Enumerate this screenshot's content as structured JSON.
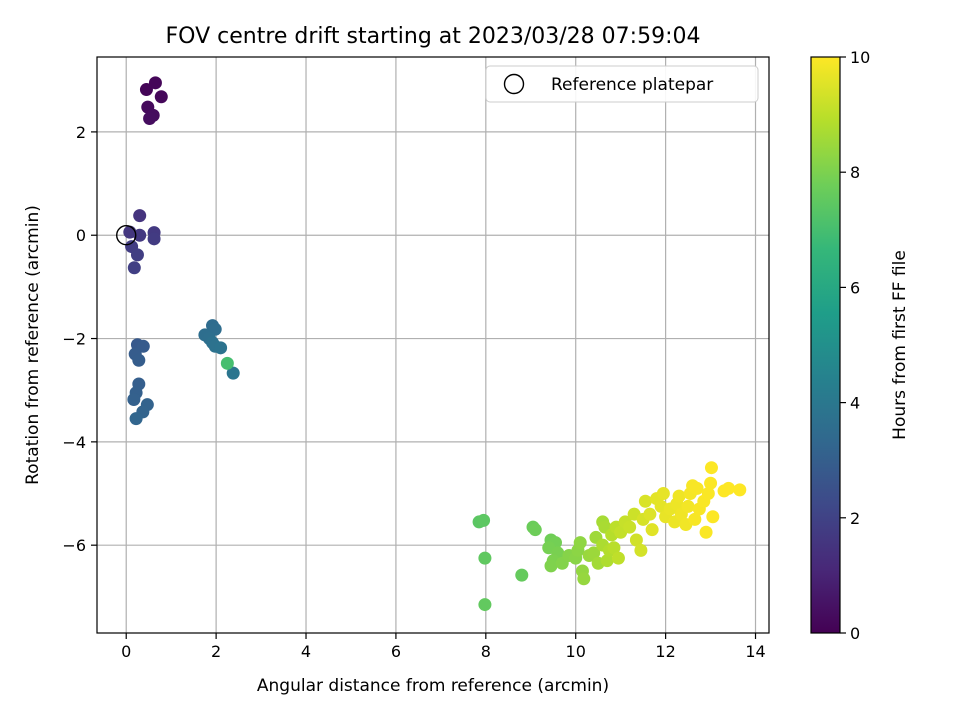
{
  "chart_data": {
    "type": "scatter",
    "title": "FOV centre drift starting at 2023/03/28 07:59:04",
    "xlabel": "Angular distance from reference (arcmin)",
    "ylabel": "Rotation from reference (arcmin)",
    "xlim": [
      -0.65,
      14.3
    ],
    "ylim": [
      -7.7,
      3.45
    ],
    "xticks": [
      0,
      2,
      4,
      6,
      8,
      10,
      12,
      14
    ],
    "yticks": [
      -6,
      -4,
      -2,
      0,
      2
    ],
    "grid": true,
    "legend": {
      "placement": "top-right",
      "entries": [
        "Reference platepar"
      ]
    },
    "reference_point": {
      "x": 0,
      "y": 0
    },
    "colorbar": {
      "label": "Hours from first FF file",
      "range": [
        0,
        10
      ],
      "ticks": [
        0,
        2,
        4,
        6,
        8,
        10
      ],
      "colormap": "viridis"
    },
    "colormap_stops": [
      "#440154",
      "#482878",
      "#3e4989",
      "#31688e",
      "#26828e",
      "#1f9e89",
      "#35b779",
      "#6ece58",
      "#b5de2b",
      "#fde725"
    ],
    "points": [
      {
        "x": 0.45,
        "y": 2.82,
        "c": 0.1
      },
      {
        "x": 0.65,
        "y": 2.95,
        "c": 0.15
      },
      {
        "x": 0.78,
        "y": 2.68,
        "c": 0.2
      },
      {
        "x": 0.48,
        "y": 2.48,
        "c": 0.25
      },
      {
        "x": 0.6,
        "y": 2.32,
        "c": 0.3
      },
      {
        "x": 0.52,
        "y": 2.26,
        "c": 0.35
      },
      {
        "x": 0.3,
        "y": 0.38,
        "c": 1.5
      },
      {
        "x": 0.08,
        "y": 0.06,
        "c": 1.6
      },
      {
        "x": 0.3,
        "y": 0.0,
        "c": 1.65
      },
      {
        "x": 0.62,
        "y": 0.05,
        "c": 1.7
      },
      {
        "x": 0.62,
        "y": -0.07,
        "c": 1.75
      },
      {
        "x": 0.12,
        "y": -0.22,
        "c": 1.8
      },
      {
        "x": 0.25,
        "y": -0.38,
        "c": 1.85
      },
      {
        "x": 0.18,
        "y": -0.63,
        "c": 1.9
      },
      {
        "x": 0.25,
        "y": -2.12,
        "c": 2.8
      },
      {
        "x": 0.38,
        "y": -2.15,
        "c": 2.85
      },
      {
        "x": 0.2,
        "y": -2.3,
        "c": 2.9
      },
      {
        "x": 0.28,
        "y": -2.42,
        "c": 2.95
      },
      {
        "x": 0.28,
        "y": -2.88,
        "c": 3.0
      },
      {
        "x": 0.22,
        "y": -3.05,
        "c": 3.05
      },
      {
        "x": 0.17,
        "y": -3.18,
        "c": 3.1
      },
      {
        "x": 0.47,
        "y": -3.28,
        "c": 3.15
      },
      {
        "x": 0.37,
        "y": -3.42,
        "c": 3.2
      },
      {
        "x": 0.22,
        "y": -3.55,
        "c": 3.25
      },
      {
        "x": 1.92,
        "y": -1.75,
        "c": 3.5
      },
      {
        "x": 1.98,
        "y": -1.82,
        "c": 3.55
      },
      {
        "x": 1.75,
        "y": -1.93,
        "c": 3.6
      },
      {
        "x": 1.85,
        "y": -2.0,
        "c": 3.65
      },
      {
        "x": 1.92,
        "y": -2.08,
        "c": 3.7
      },
      {
        "x": 1.98,
        "y": -2.15,
        "c": 3.75
      },
      {
        "x": 2.1,
        "y": -2.18,
        "c": 3.8
      },
      {
        "x": 2.38,
        "y": -2.67,
        "c": 3.9
      },
      {
        "x": 2.25,
        "y": -2.48,
        "c": 7.0
      },
      {
        "x": 7.85,
        "y": -5.55,
        "c": 7.4
      },
      {
        "x": 7.95,
        "y": -5.52,
        "c": 7.45
      },
      {
        "x": 7.98,
        "y": -6.25,
        "c": 7.5
      },
      {
        "x": 7.98,
        "y": -7.15,
        "c": 7.55
      },
      {
        "x": 8.8,
        "y": -6.58,
        "c": 7.6
      },
      {
        "x": 9.05,
        "y": -5.65,
        "c": 7.7
      },
      {
        "x": 9.1,
        "y": -5.7,
        "c": 7.75
      },
      {
        "x": 9.45,
        "y": -5.9,
        "c": 7.8
      },
      {
        "x": 9.55,
        "y": -5.95,
        "c": 7.85
      },
      {
        "x": 9.4,
        "y": -6.05,
        "c": 7.9
      },
      {
        "x": 9.6,
        "y": -6.15,
        "c": 7.95
      },
      {
        "x": 9.5,
        "y": -6.3,
        "c": 8.0
      },
      {
        "x": 9.45,
        "y": -6.4,
        "c": 8.05
      },
      {
        "x": 9.7,
        "y": -6.35,
        "c": 8.1
      },
      {
        "x": 9.85,
        "y": -6.2,
        "c": 8.15
      },
      {
        "x": 10.0,
        "y": -6.25,
        "c": 8.2
      },
      {
        "x": 10.05,
        "y": -6.1,
        "c": 8.25
      },
      {
        "x": 10.1,
        "y": -5.95,
        "c": 8.3
      },
      {
        "x": 10.15,
        "y": -6.5,
        "c": 8.35
      },
      {
        "x": 10.18,
        "y": -6.65,
        "c": 8.4
      },
      {
        "x": 10.3,
        "y": -6.2,
        "c": 8.45
      },
      {
        "x": 10.4,
        "y": -6.15,
        "c": 8.5
      },
      {
        "x": 10.45,
        "y": -5.85,
        "c": 8.55
      },
      {
        "x": 10.5,
        "y": -6.35,
        "c": 8.6
      },
      {
        "x": 10.6,
        "y": -5.55,
        "c": 8.65
      },
      {
        "x": 10.65,
        "y": -5.65,
        "c": 8.7
      },
      {
        "x": 10.6,
        "y": -6.0,
        "c": 8.75
      },
      {
        "x": 10.7,
        "y": -6.3,
        "c": 8.8
      },
      {
        "x": 10.75,
        "y": -6.1,
        "c": 8.85
      },
      {
        "x": 10.8,
        "y": -5.8,
        "c": 8.9
      },
      {
        "x": 10.85,
        "y": -6.05,
        "c": 8.95
      },
      {
        "x": 10.9,
        "y": -5.65,
        "c": 9.0
      },
      {
        "x": 10.95,
        "y": -6.25,
        "c": 9.05
      },
      {
        "x": 11.0,
        "y": -5.75,
        "c": 9.1
      },
      {
        "x": 11.1,
        "y": -5.55,
        "c": 9.15
      },
      {
        "x": 11.2,
        "y": -5.65,
        "c": 9.2
      },
      {
        "x": 11.3,
        "y": -5.4,
        "c": 9.25
      },
      {
        "x": 11.35,
        "y": -5.9,
        "c": 9.3
      },
      {
        "x": 11.45,
        "y": -6.1,
        "c": 9.35
      },
      {
        "x": 11.5,
        "y": -5.5,
        "c": 9.4
      },
      {
        "x": 11.55,
        "y": -5.15,
        "c": 9.45
      },
      {
        "x": 11.65,
        "y": -5.4,
        "c": 9.5
      },
      {
        "x": 11.7,
        "y": -5.7,
        "c": 9.55
      },
      {
        "x": 11.8,
        "y": -5.1,
        "c": 9.6
      },
      {
        "x": 11.9,
        "y": -5.25,
        "c": 9.62
      },
      {
        "x": 11.95,
        "y": -5.0,
        "c": 9.65
      },
      {
        "x": 12.0,
        "y": -5.45,
        "c": 9.68
      },
      {
        "x": 12.1,
        "y": -5.3,
        "c": 9.7
      },
      {
        "x": 12.2,
        "y": -5.55,
        "c": 9.73
      },
      {
        "x": 12.25,
        "y": -5.2,
        "c": 9.75
      },
      {
        "x": 12.3,
        "y": -5.05,
        "c": 9.78
      },
      {
        "x": 12.35,
        "y": -5.4,
        "c": 9.8
      },
      {
        "x": 12.45,
        "y": -5.6,
        "c": 9.82
      },
      {
        "x": 12.5,
        "y": -5.25,
        "c": 9.85
      },
      {
        "x": 12.55,
        "y": -5.0,
        "c": 9.87
      },
      {
        "x": 12.6,
        "y": -4.85,
        "c": 9.9
      },
      {
        "x": 12.65,
        "y": -5.5,
        "c": 9.91
      },
      {
        "x": 12.7,
        "y": -4.9,
        "c": 9.92
      },
      {
        "x": 12.75,
        "y": -5.3,
        "c": 9.93
      },
      {
        "x": 12.85,
        "y": -5.15,
        "c": 9.94
      },
      {
        "x": 12.9,
        "y": -5.75,
        "c": 9.95
      },
      {
        "x": 12.95,
        "y": -5.0,
        "c": 9.96
      },
      {
        "x": 13.0,
        "y": -4.8,
        "c": 9.97
      },
      {
        "x": 13.05,
        "y": -5.45,
        "c": 9.98
      },
      {
        "x": 13.02,
        "y": -4.5,
        "c": 9.99
      },
      {
        "x": 13.3,
        "y": -4.95,
        "c": 10.0
      },
      {
        "x": 13.4,
        "y": -4.9,
        "c": 10.0
      },
      {
        "x": 13.65,
        "y": -4.93,
        "c": 10.0
      }
    ]
  }
}
